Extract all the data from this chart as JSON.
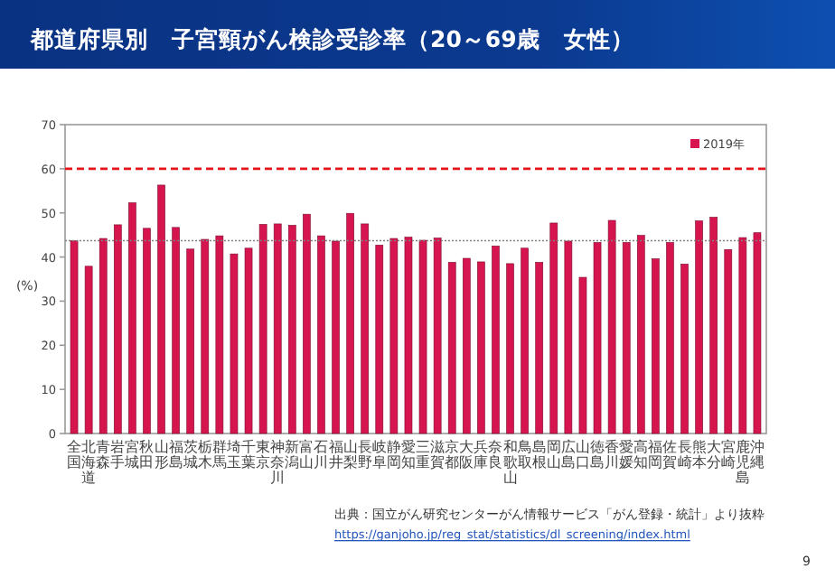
{
  "chart_data": {
    "type": "bar",
    "title": "都道府県別　子宮頸がん検診受診率（20～69歳　女性）",
    "ylabel": "(%)",
    "categories": [
      "全国",
      "北海道",
      "青森",
      "岩手",
      "宮城",
      "秋田",
      "山形",
      "福島",
      "茨城",
      "栃木",
      "群馬",
      "埼玉",
      "千葉",
      "東京",
      "神奈川",
      "新潟",
      "富山",
      "石川",
      "福井",
      "山梨",
      "長野",
      "岐阜",
      "静岡",
      "愛知",
      "三重",
      "滋賀",
      "京都",
      "大阪",
      "兵庫",
      "奈良",
      "和歌山",
      "鳥取",
      "島根",
      "岡山",
      "広島",
      "山口",
      "徳島",
      "香川",
      "愛媛",
      "高知",
      "福岡",
      "佐賀",
      "長崎",
      "熊本",
      "大分",
      "宮崎",
      "鹿児島",
      "沖縄"
    ],
    "series": [
      {
        "name": "2019年",
        "color": "#d6154f",
        "values": [
          43.7,
          37.9,
          44.2,
          47.3,
          52.3,
          46.5,
          56.3,
          46.7,
          41.8,
          44.0,
          44.8,
          40.7,
          42.0,
          47.4,
          47.5,
          47.2,
          49.7,
          44.8,
          43.6,
          49.9,
          47.5,
          42.7,
          44.2,
          44.5,
          43.8,
          44.3,
          38.8,
          39.7,
          38.9,
          42.5,
          38.5,
          42.0,
          38.8,
          47.7,
          43.6,
          35.4,
          43.3,
          48.3,
          43.3,
          44.9,
          39.6,
          43.3,
          38.4,
          48.2,
          49.0,
          41.7,
          44.4,
          45.5
        ]
      }
    ],
    "ylim": [
      0,
      70
    ],
    "yticks": [
      0,
      10,
      20,
      30,
      40,
      50,
      60,
      70
    ],
    "grid": false,
    "legend": "top right",
    "ref_lines": [
      {
        "axis": "y",
        "value": 60,
        "color": "#e8141c",
        "line_style": "dashed"
      },
      {
        "axis": "y",
        "value": 43.7,
        "color": "#808080",
        "line_style": "dotted"
      }
    ],
    "annotations": [
      "出典：国立がん研究センターがん情報サービス「がん登録・統計」より抜粋",
      "https://ganjoho.jp/reg_stat/statistics/dl_screening/index.html",
      "9"
    ]
  }
}
